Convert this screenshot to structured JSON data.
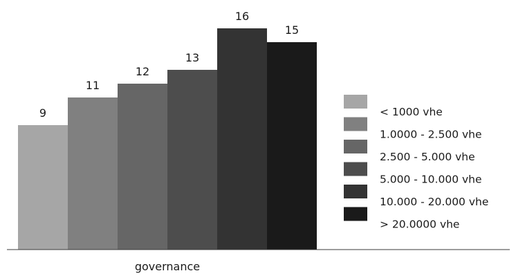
{
  "chart_data": {
    "type": "bar",
    "title": "",
    "xlabel": "",
    "ylabel": "",
    "categories": [
      "governance"
    ],
    "ylim": [
      0,
      16.9
    ],
    "grid": false,
    "legend_position": "right",
    "series": [
      {
        "name": "< 1000 vhe",
        "values": [
          9
        ],
        "color": "#a6a6a6"
      },
      {
        "name": "1.0000 - 2.500 vhe",
        "values": [
          11
        ],
        "color": "#808080"
      },
      {
        "name": "2.500 - 5.000 vhe",
        "values": [
          12
        ],
        "color": "#666666"
      },
      {
        "name": "5.000 - 10.000 vhe",
        "values": [
          13
        ],
        "color": "#4d4d4d"
      },
      {
        "name": "10.000 - 20.000 vhe",
        "values": [
          16
        ],
        "color": "#333333"
      },
      {
        "name": "> 20.0000 vhe",
        "values": [
          15
        ],
        "color": "#1a1a1a"
      }
    ]
  }
}
